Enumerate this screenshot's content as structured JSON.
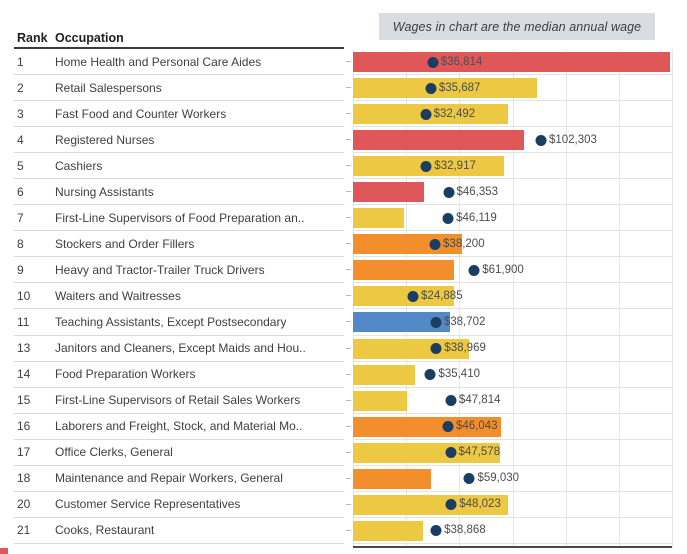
{
  "chart_data": {
    "type": "bar",
    "orientation": "horizontal",
    "title_note": "Wages in chart are the median annual wage",
    "columns": [
      "Rank",
      "Occupation"
    ],
    "legend": "none",
    "grid": true,
    "gridline_count": 7,
    "bar_colors": {
      "red": "#e05759",
      "yellow": "#ecc843",
      "orange": "#f28e2b",
      "blue": "#5489c8"
    },
    "dot_color": "#1b3d62",
    "note_box_bg": "#d9dde2",
    "dot_position": {
      "pct_offset": 5.93,
      "pct_per_dollar": 0.000518
    },
    "rows": [
      {
        "rank": "1",
        "occupation": "Home Health and Personal Care Aides",
        "wage": 36814,
        "wage_label": "$36,814",
        "bar_pct": 99.4,
        "color": "red"
      },
      {
        "rank": "2",
        "occupation": "Retail Salespersons",
        "wage": 35687,
        "wage_label": "$35,687",
        "bar_pct": 57.7,
        "color": "yellow"
      },
      {
        "rank": "3",
        "occupation": "Fast Food and Counter Workers",
        "wage": 32492,
        "wage_label": "$32,492",
        "bar_pct": 48.6,
        "color": "yellow"
      },
      {
        "rank": "4",
        "occupation": "Registered Nurses",
        "wage": 102303,
        "wage_label": "$102,303",
        "bar_pct": 53.6,
        "color": "red"
      },
      {
        "rank": "5",
        "occupation": "Cashiers",
        "wage": 32917,
        "wage_label": "$32,917",
        "bar_pct": 47.2,
        "color": "yellow"
      },
      {
        "rank": "6",
        "occupation": "Nursing Assistants",
        "wage": 46353,
        "wage_label": "$46,353",
        "bar_pct": 22.3,
        "color": "red"
      },
      {
        "rank": "7",
        "occupation": "First-Line Supervisors of Food Preparation an..",
        "wage": 46119,
        "wage_label": "$46,119",
        "bar_pct": 16.0,
        "color": "yellow"
      },
      {
        "rank": "8",
        "occupation": "Stockers and Order Fillers",
        "wage": 38200,
        "wage_label": "$38,200",
        "bar_pct": 34.2,
        "color": "orange"
      },
      {
        "rank": "9",
        "occupation": "Heavy and Tractor-Trailer Truck Drivers",
        "wage": 61900,
        "wage_label": "$61,900",
        "bar_pct": 31.7,
        "color": "orange"
      },
      {
        "rank": "10",
        "occupation": "Waiters and Waitresses",
        "wage": 24885,
        "wage_label": "$24,885",
        "bar_pct": 31.7,
        "color": "yellow"
      },
      {
        "rank": "11",
        "occupation": "Teaching Assistants, Except Postsecondary",
        "wage": 38702,
        "wage_label": "$38,702",
        "bar_pct": 30.4,
        "color": "blue"
      },
      {
        "rank": "13",
        "occupation": "Janitors and Cleaners, Except Maids and Hou..",
        "wage": 38969,
        "wage_label": "$38,969",
        "bar_pct": 36.4,
        "color": "yellow"
      },
      {
        "rank": "14",
        "occupation": "Food Preparation Workers",
        "wage": 35410,
        "wage_label": "$35,410",
        "bar_pct": 19.4,
        "color": "yellow"
      },
      {
        "rank": "15",
        "occupation": "First-Line Supervisors of Retail Sales Workers",
        "wage": 47814,
        "wage_label": "$47,814",
        "bar_pct": 16.8,
        "color": "yellow"
      },
      {
        "rank": "16",
        "occupation": "Laborers and Freight, Stock, and Material Mo..",
        "wage": 46043,
        "wage_label": "$46,043",
        "bar_pct": 46.4,
        "color": "orange"
      },
      {
        "rank": "17",
        "occupation": "Office Clerks, General",
        "wage": 47578,
        "wage_label": "$47,578",
        "bar_pct": 46.1,
        "color": "yellow"
      },
      {
        "rank": "18",
        "occupation": "Maintenance and Repair Workers, General",
        "wage": 59030,
        "wage_label": "$59,030",
        "bar_pct": 24.5,
        "color": "orange"
      },
      {
        "rank": "20",
        "occupation": "Customer Service Representatives",
        "wage": 48023,
        "wage_label": "$48,023",
        "bar_pct": 48.6,
        "color": "yellow"
      },
      {
        "rank": "21",
        "occupation": "Cooks, Restaurant",
        "wage": 38868,
        "wage_label": "$38,868",
        "bar_pct": 21.9,
        "color": "yellow"
      }
    ]
  }
}
